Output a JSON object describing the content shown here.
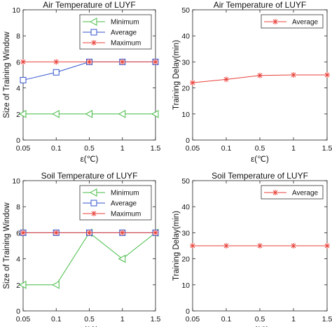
{
  "chart_data": [
    {
      "type": "line",
      "title": "Air Temperature of LUYF",
      "xlabel": "ε(℃)",
      "ylabel": "Size of Training Window",
      "categories": [
        "0.05",
        "0.1",
        "0.5",
        "1",
        "1.5"
      ],
      "yticks": [
        "0",
        "2",
        "4",
        "6",
        "8",
        "10"
      ],
      "ylim": [
        0,
        10
      ],
      "grid": false,
      "legend_position": "top-right",
      "series": [
        {
          "name": "Minimum",
          "values": [
            2,
            2,
            2,
            2,
            2
          ],
          "color": "#44bb44",
          "marker": "triangle-left"
        },
        {
          "name": "Average",
          "values": [
            4.6,
            5.2,
            6,
            6,
            6
          ],
          "color": "#3355cc",
          "marker": "square"
        },
        {
          "name": "Maximum",
          "values": [
            6,
            6,
            6,
            6,
            6
          ],
          "color": "#e8413a",
          "marker": "asterisk"
        }
      ]
    },
    {
      "type": "line",
      "title": "Air Temperature of LUYF",
      "xlabel": "ε(℃)",
      "ylabel": "Training Delay(min)",
      "categories": [
        "0.05",
        "0.1",
        "0.5",
        "1",
        "1.5"
      ],
      "yticks": [
        "0",
        "10",
        "20",
        "30",
        "40",
        "50"
      ],
      "ylim": [
        0,
        50
      ],
      "grid": false,
      "legend_position": "top-right",
      "series": [
        {
          "name": "Average",
          "values": [
            22,
            23.3,
            24.8,
            25,
            25
          ],
          "color": "#e8413a",
          "marker": "asterisk"
        }
      ]
    },
    {
      "type": "line",
      "title": "Soil Temperature of LUYF",
      "xlabel": "ε(℃)",
      "ylabel": "Size of Training Window",
      "categories": [
        "0.05",
        "0.1",
        "0.5",
        "1",
        "1.5"
      ],
      "yticks": [
        "0",
        "2",
        "4",
        "6",
        "8",
        "10"
      ],
      "ylim": [
        0,
        10
      ],
      "grid": false,
      "legend_position": "top-right",
      "series": [
        {
          "name": "Minimum",
          "values": [
            2,
            2,
            6,
            4,
            6
          ],
          "color": "#44bb44",
          "marker": "triangle-left"
        },
        {
          "name": "Average",
          "values": [
            6,
            6,
            6,
            6,
            6
          ],
          "color": "#3355cc",
          "marker": "square"
        },
        {
          "name": "Maximum",
          "values": [
            6,
            6,
            6,
            6,
            6
          ],
          "color": "#e8413a",
          "marker": "asterisk"
        }
      ]
    },
    {
      "type": "line",
      "title": "Soil Temperature of LUYF",
      "xlabel": "ε(℃)",
      "ylabel": "Training Delay(min)",
      "categories": [
        "0.05",
        "0.1",
        "0.5",
        "1",
        "1.5"
      ],
      "yticks": [
        "0",
        "10",
        "20",
        "30",
        "40",
        "50"
      ],
      "ylim": [
        0,
        50
      ],
      "grid": false,
      "legend_position": "top-right",
      "series": [
        {
          "name": "Average",
          "values": [
            25,
            25,
            25,
            25,
            25
          ],
          "color": "#e8413a",
          "marker": "asterisk"
        }
      ]
    }
  ]
}
